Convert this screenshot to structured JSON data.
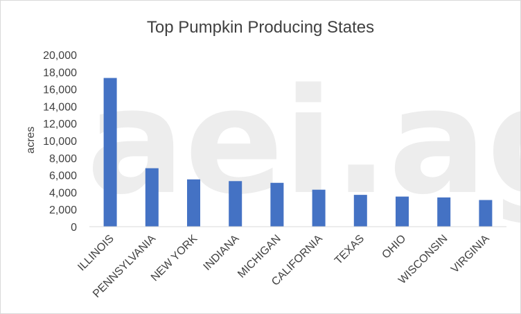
{
  "watermark": "aei.ag",
  "colors": {
    "bar": "#4472c4",
    "text": "#404040",
    "grid": "#d9d9d9",
    "watermark": "#ededed"
  },
  "chart_data": {
    "type": "bar",
    "title": "Top Pumpkin Producing States",
    "xlabel": "",
    "ylabel": "acres",
    "ylim": [
      0,
      20000
    ],
    "ytick_step": 2000,
    "yticks": [
      "0",
      "2,000",
      "4,000",
      "6,000",
      "8,000",
      "10,000",
      "12,000",
      "14,000",
      "16,000",
      "18,000",
      "20,000"
    ],
    "grid": false,
    "legend": "none",
    "categories": [
      "ILLINOIS",
      "PENNSYLVANIA",
      "NEW YORK",
      "INDIANA",
      "MICHIGAN",
      "CALIFORNIA",
      "TEXAS",
      "OHIO",
      "WISCONSIN",
      "VIRGINIA"
    ],
    "series": [
      {
        "values": [
          17300,
          6800,
          5500,
          5300,
          5100,
          4300,
          3700,
          3500,
          3400,
          3100
        ]
      }
    ]
  }
}
